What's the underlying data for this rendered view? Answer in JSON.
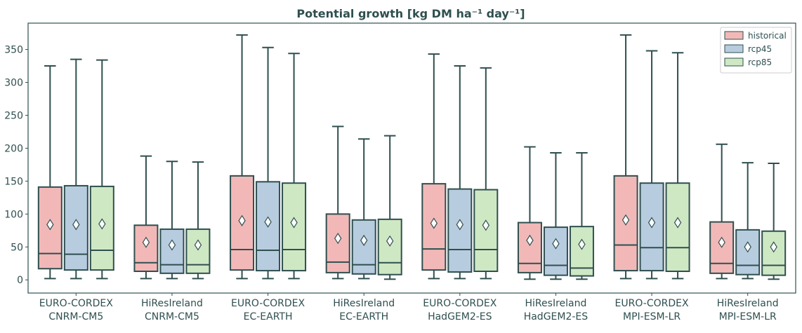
{
  "chart_data": {
    "type": "box",
    "title": "Potential growth [kg DM ha⁻¹ day⁻¹]",
    "xlabel": "",
    "ylabel": "",
    "ylim": [
      -20,
      390
    ],
    "yticks": [
      0,
      50,
      100,
      150,
      200,
      250,
      300,
      350
    ],
    "grid": false,
    "legend_position": "top-right",
    "categories": [
      [
        "EURO-CORDEX",
        "CNRM-CM5"
      ],
      [
        "HiResIreland",
        "CNRM-CM5"
      ],
      [
        "EURO-CORDEX",
        "EC-EARTH"
      ],
      [
        "HiResIreland",
        "EC-EARTH"
      ],
      [
        "EURO-CORDEX",
        "HadGEM2-ES"
      ],
      [
        "HiResIreland",
        "HadGEM2-ES"
      ],
      [
        "EURO-CORDEX",
        "MPI-ESM-LR"
      ],
      [
        "HiResIreland",
        "MPI-ESM-LR"
      ]
    ],
    "series": [
      {
        "name": "historical",
        "color": "#f2b8b8",
        "boxes": [
          {
            "min": 2,
            "q1": 17,
            "median": 40,
            "q3": 141,
            "max": 325,
            "mean": 84
          },
          {
            "min": 2,
            "q1": 13,
            "median": 26,
            "q3": 83,
            "max": 188,
            "mean": 57
          },
          {
            "min": 2,
            "q1": 15,
            "median": 46,
            "q3": 158,
            "max": 372,
            "mean": 90
          },
          {
            "min": 2,
            "q1": 11,
            "median": 27,
            "q3": 100,
            "max": 233,
            "mean": 63
          },
          {
            "min": 2,
            "q1": 15,
            "median": 47,
            "q3": 146,
            "max": 343,
            "mean": 86
          },
          {
            "min": 1,
            "q1": 11,
            "median": 25,
            "q3": 87,
            "max": 202,
            "mean": 60
          },
          {
            "min": 2,
            "q1": 14,
            "median": 53,
            "q3": 158,
            "max": 372,
            "mean": 91
          },
          {
            "min": 2,
            "q1": 10,
            "median": 25,
            "q3": 88,
            "max": 206,
            "mean": 57
          }
        ]
      },
      {
        "name": "rcp45",
        "color": "#b8cce0",
        "boxes": [
          {
            "min": 2,
            "q1": 15,
            "median": 39,
            "q3": 143,
            "max": 335,
            "mean": 84
          },
          {
            "min": 2,
            "q1": 10,
            "median": 23,
            "q3": 77,
            "max": 180,
            "mean": 53
          },
          {
            "min": 2,
            "q1": 14,
            "median": 45,
            "q3": 149,
            "max": 353,
            "mean": 88
          },
          {
            "min": 2,
            "q1": 9,
            "median": 23,
            "q3": 91,
            "max": 214,
            "mean": 60
          },
          {
            "min": 2,
            "q1": 12,
            "median": 46,
            "q3": 138,
            "max": 325,
            "mean": 84
          },
          {
            "min": 1,
            "q1": 7,
            "median": 22,
            "q3": 80,
            "max": 193,
            "mean": 55
          },
          {
            "min": 2,
            "q1": 14,
            "median": 49,
            "q3": 147,
            "max": 348,
            "mean": 87
          },
          {
            "min": 2,
            "q1": 8,
            "median": 22,
            "q3": 76,
            "max": 178,
            "mean": 50
          }
        ]
      },
      {
        "name": "rcp85",
        "color": "#cfe8c4",
        "boxes": [
          {
            "min": 2,
            "q1": 15,
            "median": 45,
            "q3": 142,
            "max": 334,
            "mean": 85
          },
          {
            "min": 2,
            "q1": 10,
            "median": 23,
            "q3": 77,
            "max": 179,
            "mean": 53
          },
          {
            "min": 2,
            "q1": 14,
            "median": 46,
            "q3": 147,
            "max": 344,
            "mean": 87
          },
          {
            "min": 1,
            "q1": 8,
            "median": 26,
            "q3": 92,
            "max": 219,
            "mean": 59
          },
          {
            "min": 2,
            "q1": 13,
            "median": 46,
            "q3": 137,
            "max": 322,
            "mean": 83
          },
          {
            "min": 1,
            "q1": 6,
            "median": 18,
            "q3": 81,
            "max": 193,
            "mean": 54
          },
          {
            "min": 2,
            "q1": 13,
            "median": 49,
            "q3": 147,
            "max": 345,
            "mean": 87
          },
          {
            "min": 1,
            "q1": 7,
            "median": 22,
            "q3": 74,
            "max": 177,
            "mean": 50
          }
        ]
      }
    ],
    "line_color": "#2f4f4f"
  }
}
